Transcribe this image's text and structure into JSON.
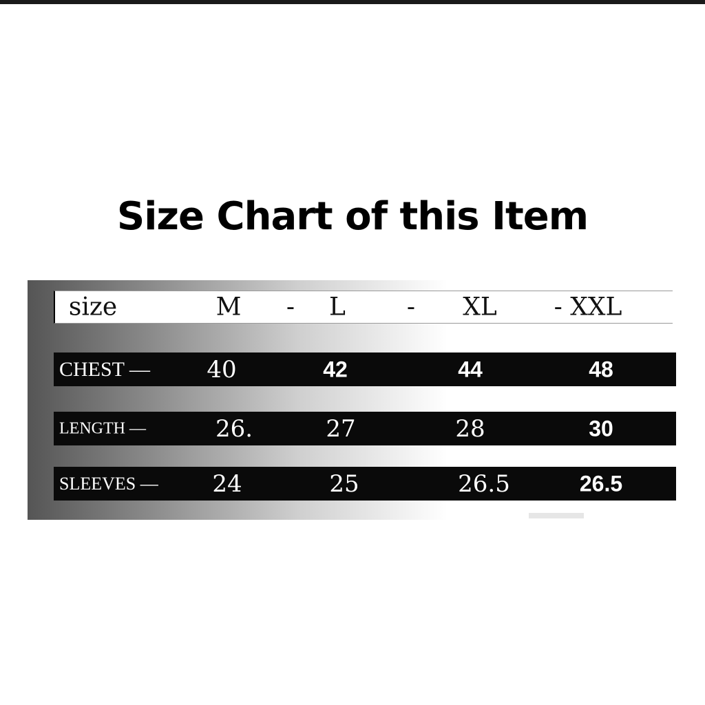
{
  "title": "Size Chart of this Item",
  "header": {
    "label": "size",
    "sizes": [
      "M",
      "-",
      "L",
      "-",
      "XL",
      "- XXL"
    ]
  },
  "rows": [
    {
      "label": "CHEST —",
      "values": [
        "40",
        "42",
        "44",
        "48"
      ]
    },
    {
      "label": "LENGTH —",
      "values": [
        "26.",
        "27",
        "28",
        "30"
      ]
    },
    {
      "label": "SLEEVES —",
      "values": [
        "24",
        "25",
        "26.5",
        "26.5"
      ]
    }
  ]
}
